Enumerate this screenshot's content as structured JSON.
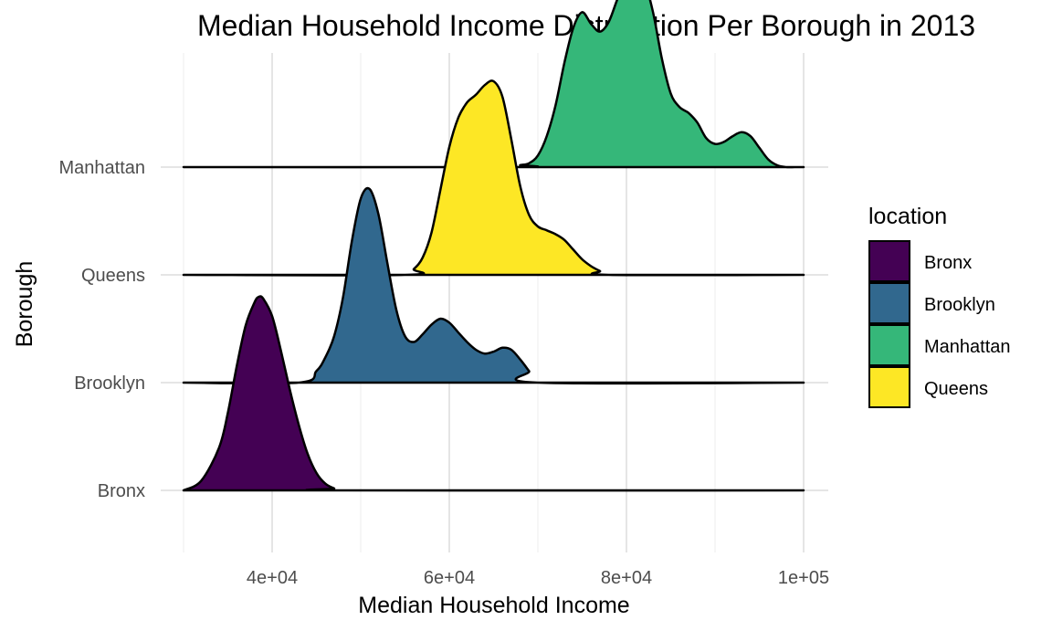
{
  "chart_data": {
    "type": "ridgeline",
    "title": "Median Household Income Distribution Per Borough in 2013",
    "xlabel": "Median Household Income",
    "ylabel": "Borough",
    "xlim": [
      30000,
      100000
    ],
    "x_ticks": [
      40000,
      60000,
      80000,
      100000
    ],
    "x_tick_labels": [
      "4e+04",
      "6e+04",
      "8e+04",
      "1e+05"
    ],
    "categories": [
      "Bronx",
      "Brooklyn",
      "Queens",
      "Manhattan"
    ],
    "grid": true,
    "legend": {
      "title": "location",
      "position": "right",
      "entries": [
        "Bronx",
        "Brooklyn",
        "Manhattan",
        "Queens"
      ]
    },
    "colors": {
      "Bronx": "#440154",
      "Brooklyn": "#31688E",
      "Manhattan": "#35B779",
      "Queens": "#FDE725"
    },
    "series": [
      {
        "name": "Bronx",
        "x": [
          30000,
          32000,
          34000,
          35000,
          36000,
          37000,
          38000,
          38500,
          39000,
          40000,
          41000,
          42000,
          43000,
          44000,
          45000,
          46000,
          47000,
          48000,
          100000
        ],
        "density": [
          0.0,
          0.05,
          0.22,
          0.4,
          0.64,
          0.85,
          0.97,
          1.0,
          0.99,
          0.9,
          0.72,
          0.52,
          0.34,
          0.19,
          0.09,
          0.035,
          0.01,
          0.0,
          0.0
        ]
      },
      {
        "name": "Brooklyn",
        "x": [
          30000,
          43000,
          45000,
          46000,
          47000,
          48000,
          49000,
          50000,
          51000,
          52000,
          53000,
          54000,
          55000,
          56000,
          57000,
          58000,
          59000,
          60000,
          61000,
          62000,
          63000,
          64000,
          65000,
          66000,
          67000,
          68000,
          69000,
          70000,
          100000
        ],
        "density": [
          0.0,
          0.0,
          0.06,
          0.13,
          0.24,
          0.44,
          0.73,
          0.95,
          1.0,
          0.87,
          0.62,
          0.38,
          0.24,
          0.21,
          0.25,
          0.3,
          0.33,
          0.31,
          0.26,
          0.21,
          0.17,
          0.15,
          0.16,
          0.18,
          0.17,
          0.12,
          0.06,
          0.0,
          0.0
        ]
      },
      {
        "name": "Queens",
        "x": [
          30000,
          55000,
          56000,
          57000,
          58000,
          59000,
          60000,
          61000,
          62000,
          63000,
          64000,
          65000,
          66000,
          67000,
          68000,
          69000,
          70000,
          71000,
          72000,
          73000,
          74000,
          75000,
          76000,
          77000,
          78000,
          100000
        ],
        "density": [
          0.0,
          0.0,
          0.03,
          0.09,
          0.22,
          0.44,
          0.66,
          0.81,
          0.89,
          0.93,
          0.98,
          1.0,
          0.92,
          0.7,
          0.46,
          0.31,
          0.25,
          0.23,
          0.21,
          0.18,
          0.13,
          0.08,
          0.045,
          0.02,
          0.0,
          0.0
        ]
      },
      {
        "name": "Manhattan",
        "x": [
          30000,
          67000,
          68000,
          69000,
          70000,
          71000,
          72000,
          73000,
          74000,
          75000,
          76000,
          77000,
          78000,
          79000,
          80000,
          81000,
          82000,
          83000,
          84000,
          85000,
          86000,
          87000,
          88000,
          89000,
          90000,
          91000,
          92000,
          93000,
          94000,
          95000,
          96000,
          97000,
          98000,
          99000,
          100000
        ],
        "density": [
          0.0,
          0.0,
          0.01,
          0.02,
          0.06,
          0.16,
          0.32,
          0.54,
          0.72,
          0.8,
          0.74,
          0.7,
          0.75,
          0.87,
          0.97,
          1.0,
          0.96,
          0.8,
          0.56,
          0.38,
          0.31,
          0.28,
          0.23,
          0.15,
          0.12,
          0.13,
          0.16,
          0.18,
          0.16,
          0.1,
          0.04,
          0.01,
          0.0,
          0.0,
          0.0
        ]
      }
    ]
  }
}
